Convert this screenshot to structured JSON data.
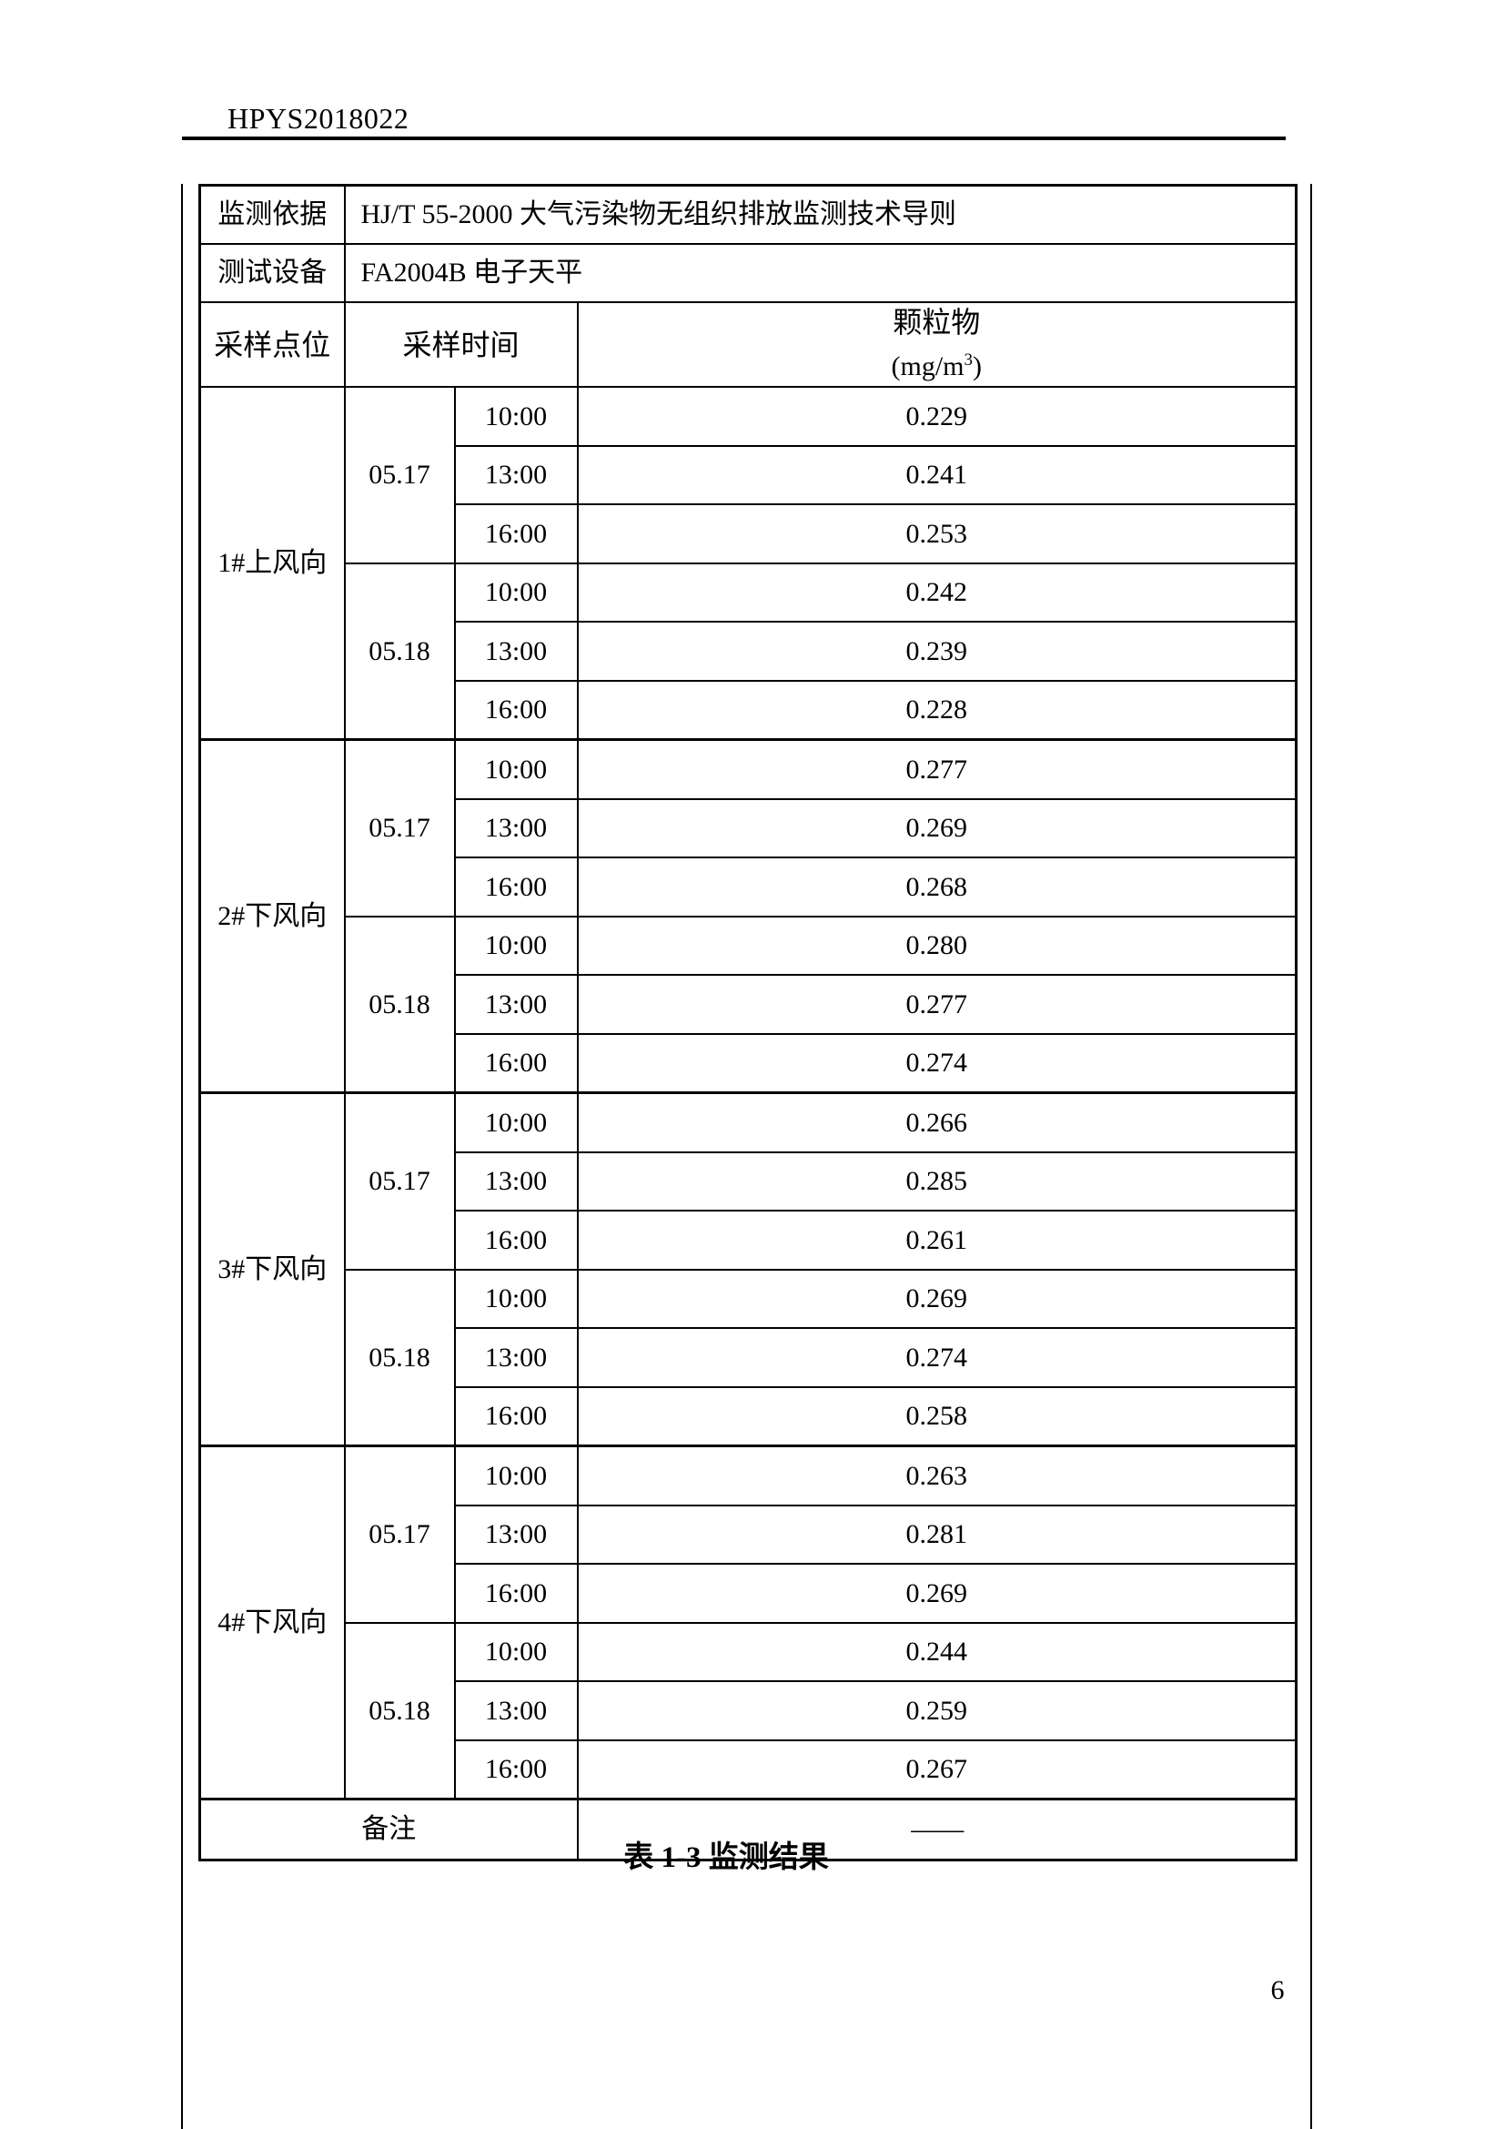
{
  "page": {
    "header_code": "HPYS2018022",
    "caption": "表 1-3 监测结果",
    "page_number": "6"
  },
  "colors": {
    "ink": "#000000",
    "paper": "#ffffff"
  },
  "table": {
    "info_rows": [
      {
        "label": "监测依据",
        "value": "HJ/T 55-2000  大气污染物无组织排放监测技术导则"
      },
      {
        "label": "测试设备",
        "value": "FA2004B 电子天平"
      }
    ],
    "header": {
      "point": "采样点位",
      "time": "采样时间",
      "pollutant": "颗粒物",
      "unit_base": "(mg/m",
      "unit_sup": "3",
      "unit_close": ")"
    },
    "blocks": [
      {
        "point": "1#上风向",
        "groups": [
          {
            "date": "05.17",
            "rows": [
              {
                "time": "10:00",
                "value": "0.229"
              },
              {
                "time": "13:00",
                "value": "0.241"
              },
              {
                "time": "16:00",
                "value": "0.253"
              }
            ]
          },
          {
            "date": "05.18",
            "rows": [
              {
                "time": "10:00",
                "value": "0.242"
              },
              {
                "time": "13:00",
                "value": "0.239"
              },
              {
                "time": "16:00",
                "value": "0.228"
              }
            ]
          }
        ]
      },
      {
        "point": "2#下风向",
        "groups": [
          {
            "date": "05.17",
            "rows": [
              {
                "time": "10:00",
                "value": "0.277"
              },
              {
                "time": "13:00",
                "value": "0.269"
              },
              {
                "time": "16:00",
                "value": "0.268"
              }
            ]
          },
          {
            "date": "05.18",
            "rows": [
              {
                "time": "10:00",
                "value": "0.280"
              },
              {
                "time": "13:00",
                "value": "0.277"
              },
              {
                "time": "16:00",
                "value": "0.274"
              }
            ]
          }
        ]
      },
      {
        "point": "3#下风向",
        "groups": [
          {
            "date": "05.17",
            "rows": [
              {
                "time": "10:00",
                "value": "0.266"
              },
              {
                "time": "13:00",
                "value": "0.285"
              },
              {
                "time": "16:00",
                "value": "0.261"
              }
            ]
          },
          {
            "date": "05.18",
            "rows": [
              {
                "time": "10:00",
                "value": "0.269"
              },
              {
                "time": "13:00",
                "value": "0.274"
              },
              {
                "time": "16:00",
                "value": "0.258"
              }
            ]
          }
        ]
      },
      {
        "point": "4#下风向",
        "groups": [
          {
            "date": "05.17",
            "rows": [
              {
                "time": "10:00",
                "value": "0.263"
              },
              {
                "time": "13:00",
                "value": "0.281"
              },
              {
                "time": "16:00",
                "value": "0.269"
              }
            ]
          },
          {
            "date": "05.18",
            "rows": [
              {
                "time": "10:00",
                "value": "0.244"
              },
              {
                "time": "13:00",
                "value": "0.259"
              },
              {
                "time": "16:00",
                "value": "0.267"
              }
            ]
          }
        ]
      }
    ],
    "remark": {
      "label": "备注",
      "value": "——"
    }
  }
}
